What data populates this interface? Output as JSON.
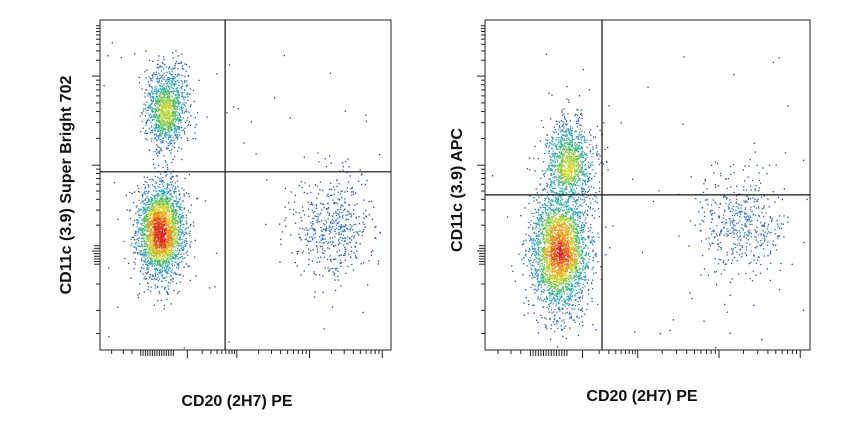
{
  "chart_data": [
    {
      "type": "scatter",
      "subtype": "flow-cytometry-density-plot",
      "xlabel": "CD20 (2H7) PE",
      "ylabel": "CD11c (3.9) Super Bright 702",
      "x_scale": "log",
      "y_scale": "log",
      "xlim": [
        0,
        100
      ],
      "ylim": [
        0,
        100
      ],
      "gates": {
        "x": 43,
        "y": 54
      },
      "populations": [
        {
          "name": "",
          "cx": 21,
          "cy": 36,
          "sx": 4.0,
          "sy": 7.0,
          "count": 2600
        },
        {
          "name": "",
          "cx": 23,
          "cy": 73,
          "sx": 3.6,
          "sy": 6.0,
          "count": 1200
        },
        {
          "name": "",
          "cx": 80,
          "cy": 37,
          "sx": 6.5,
          "sy": 8.0,
          "count": 520
        }
      ]
    },
    {
      "type": "scatter",
      "subtype": "flow-cytometry-density-plot",
      "xlabel": "CD20 (2H7) PE",
      "ylabel": "CD11c (3.9) APC",
      "x_scale": "log",
      "y_scale": "log",
      "xlim": [
        0,
        100
      ],
      "ylim": [
        0,
        100
      ],
      "gates": {
        "x": 36,
        "y": 47
      },
      "populations": [
        {
          "name": "",
          "cx": 23,
          "cy": 30,
          "sx": 4.2,
          "sy": 9.0,
          "count": 2900
        },
        {
          "name": "",
          "cx": 26,
          "cy": 57,
          "sx": 3.6,
          "sy": 6.5,
          "count": 1100
        },
        {
          "name": "",
          "cx": 79,
          "cy": 38,
          "sx": 6.0,
          "sy": 7.5,
          "count": 480
        }
      ]
    }
  ]
}
